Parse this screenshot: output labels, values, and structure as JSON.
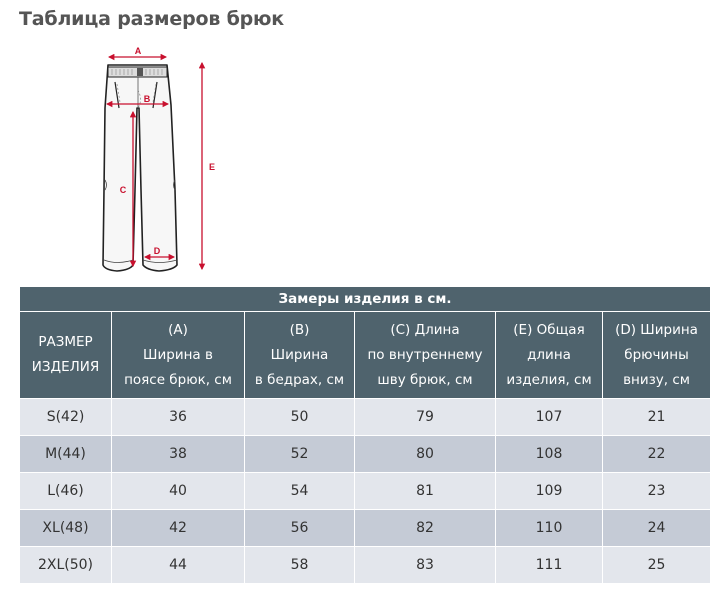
{
  "page": {
    "title": "Таблица размеров брюк"
  },
  "diagram": {
    "labels": {
      "a": "A",
      "b": "B",
      "c": "C",
      "d": "D",
      "e": "E"
    },
    "colors": {
      "outline": "#222222",
      "measure": "#c8102e",
      "fabric": "#f7f7f7"
    }
  },
  "table": {
    "caption": "Замеры изделия в см.",
    "headers": [
      [
        "РАЗМЕР",
        "ИЗДЕЛИЯ"
      ],
      [
        "(A)",
        "Ширина в",
        "поясе брюк, см"
      ],
      [
        "(B)",
        "Ширина",
        "в бедрах, см"
      ],
      [
        "(C) Длина",
        "по внутреннему",
        "шву брюк, см"
      ],
      [
        "(E) Общая",
        "длина",
        "изделия, см"
      ],
      [
        "(D) Ширина",
        "брючины",
        "внизу, см"
      ]
    ],
    "rows": [
      [
        "S(42)",
        "36",
        "50",
        "79",
        "107",
        "21"
      ],
      [
        "M(44)",
        "38",
        "52",
        "80",
        "108",
        "22"
      ],
      [
        "L(46)",
        "40",
        "54",
        "81",
        "109",
        "23"
      ],
      [
        "XL(48)",
        "42",
        "56",
        "82",
        "110",
        "24"
      ],
      [
        "2XL(50)",
        "44",
        "58",
        "83",
        "111",
        "25"
      ]
    ],
    "colors": {
      "header_bg": "#4f636d",
      "row_light": "#e3e6ec",
      "row_dark": "#c5cbd6"
    }
  }
}
